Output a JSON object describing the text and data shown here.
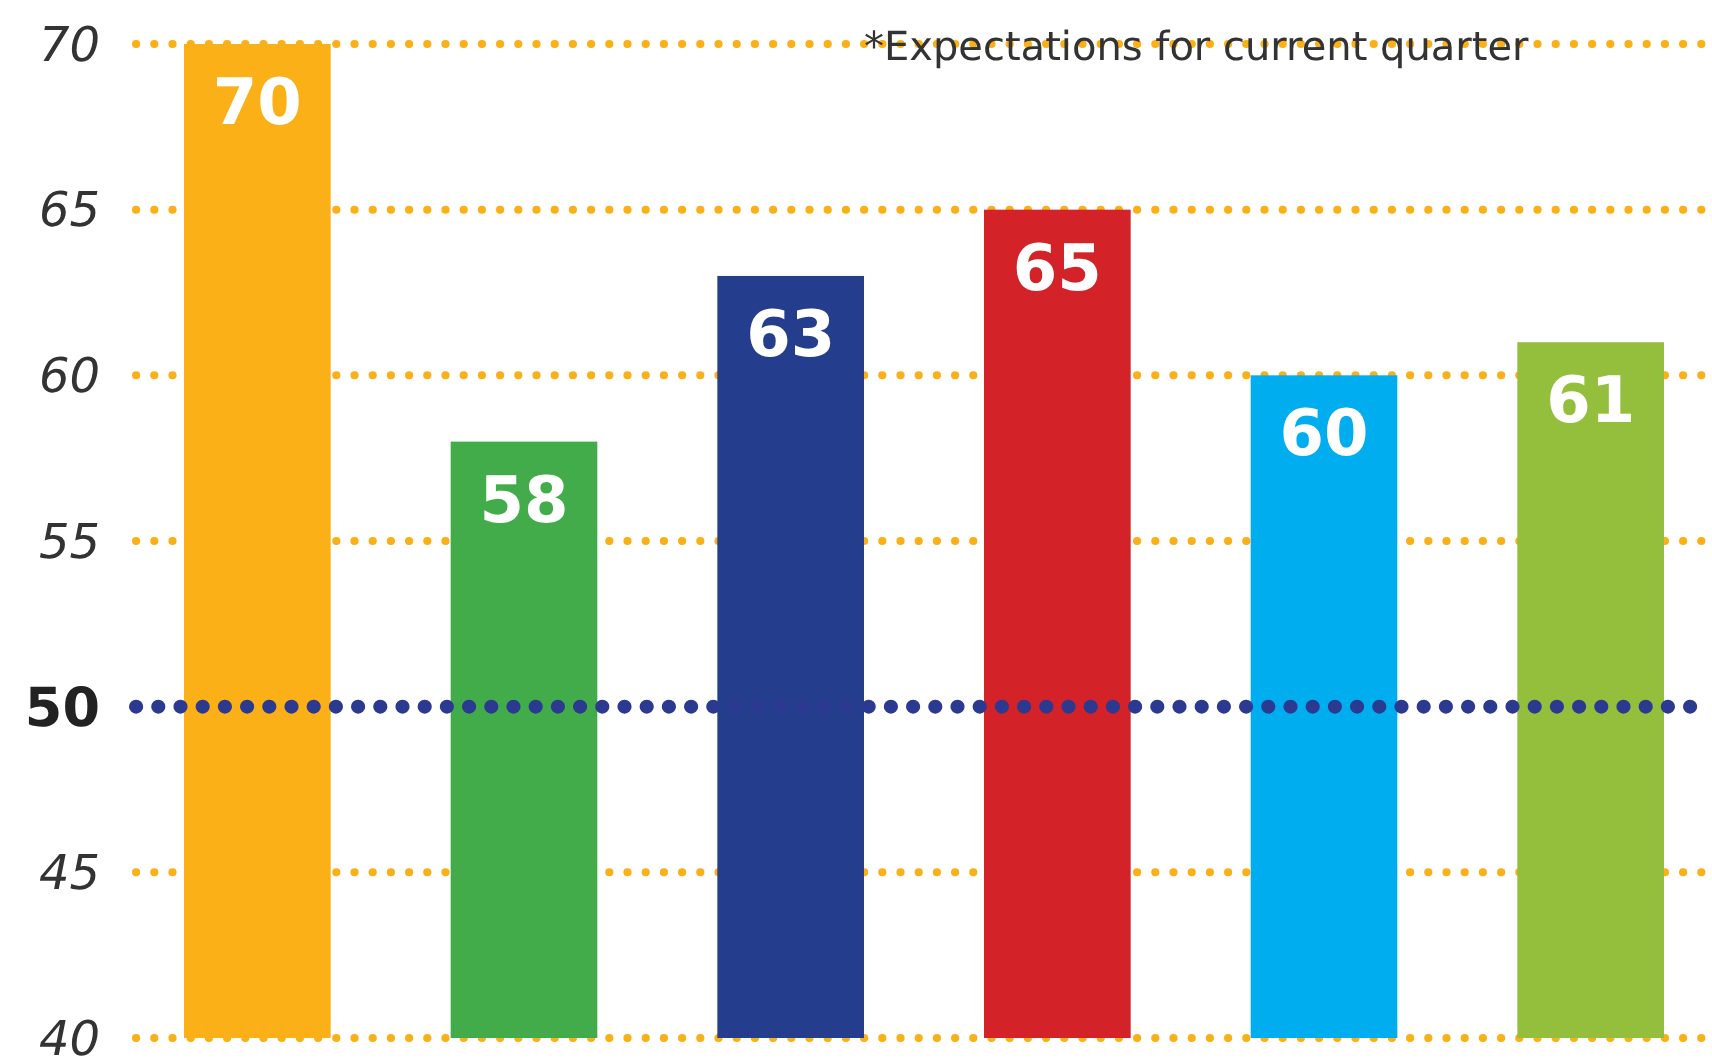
{
  "chart_data": {
    "type": "bar",
    "categories": [
      null,
      null,
      null,
      null,
      null,
      null
    ],
    "values": [
      70,
      58,
      63,
      65,
      60,
      61
    ],
    "colors": [
      "#fbb017",
      "#43ac4a",
      "#243e8d",
      "#d42229",
      "#00aeef",
      "#94bf3c"
    ],
    "ylim": [
      40,
      70
    ],
    "yticks": [
      40,
      45,
      55,
      60,
      65,
      70
    ],
    "grid": "y",
    "data_labels": true,
    "ref_lines": [
      {
        "axis": "y",
        "value": 50,
        "label": "50",
        "color": "#2b3990",
        "line_style": "dotted"
      }
    ],
    "annotations": [
      "*Expectations for current quarter"
    ]
  }
}
